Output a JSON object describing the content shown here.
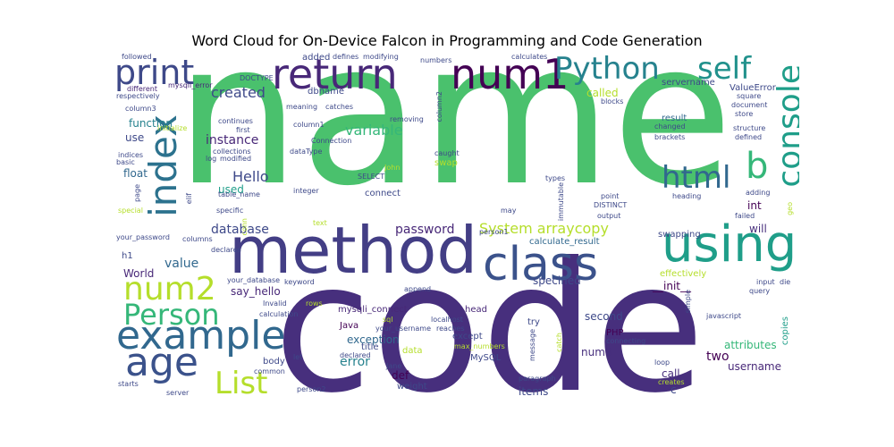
{
  "title": "Word Cloud for On-Device Falcon in Programming and Code Generation",
  "palette": [
    "#440154",
    "#482878",
    "#3e4989",
    "#31688e",
    "#26828e",
    "#1f9e89",
    "#35b779",
    "#6ece58",
    "#b5de2b",
    "#fde725"
  ],
  "words": {
    "name": "name",
    "code": "code",
    "method": "method",
    "class": "class",
    "using": "using",
    "return": "return",
    "num1": "num1",
    "print": "print",
    "python": "Python",
    "self": "self",
    "console": "console",
    "index": "index",
    "example": "example",
    "age": "age",
    "num2": "num2",
    "person": "Person",
    "list": "List",
    "html": "html",
    "b": "b",
    "created": "created",
    "system_arraycopy": "System arraycopy",
    "database": "database",
    "password": "password",
    "hello": "Hello",
    "variable": "variable",
    "instance": "instance",
    "function": "function",
    "used": "used",
    "float": "float",
    "value": "value",
    "world": "World",
    "h1": "h1",
    "say_hello": "say_hello",
    "mysqli_connect": "mysqli_connect",
    "java": "Java",
    "exception": "exception",
    "error": "error",
    "title_word": "title",
    "def": "def",
    "weight": "weight",
    "mysql": "MySQL",
    "num3": "num3",
    "second": "second",
    "php": "PHP",
    "two": "two",
    "username": "username",
    "items": "items",
    "call": "call",
    "attributes": "attributes",
    "init": "__init__",
    "swapping": "swapping",
    "effectively": "effectively",
    "calculate_result": "calculate_result",
    "called": "called",
    "result": "result",
    "valueerror": "ValueError",
    "servername": "servername",
    "added": "added",
    "dbname": "dbname",
    "int": "int",
    "will": "will",
    "head": "head",
    "data": "data",
    "try": "try",
    "specified": "specified",
    "body": "body",
    "swap": "swap",
    "connect": "connect",
    "use": "use",
    "followed": "followed",
    "defines": "defines",
    "modifying": "modifying",
    "numbers": "numbers",
    "calculates": "calculates",
    "mysqli_error": "mysqli_error",
    "doctype": "DOCTYPE",
    "different": "different",
    "respectively": "respectively",
    "column3": "column3",
    "initialize": "initialize",
    "indices": "indices",
    "basic": "basic",
    "log": "log",
    "modified": "modified",
    "collections": "collections",
    "continues": "continues",
    "first": "first",
    "meaning": "meaning",
    "catches": "catches",
    "column1": "column1",
    "connection": "Connection",
    "datatype": "dataType",
    "removing": "removing",
    "john": "John",
    "select": "SELECT",
    "integer": "integer",
    "table_name": "table_name",
    "elif": "elif",
    "page": "page",
    "special": "special",
    "specific": "specific",
    "your_password": "your_password",
    "columns": "columns",
    "declares": "declares",
    "text": "text",
    "may": "may",
    "person1": "person1",
    "your_database": "your_database",
    "keyword": "keyword",
    "invalid": "Invalid",
    "rows": "rows",
    "calculation": "calculation",
    "append": "append",
    "sql": "sql",
    "your_username": "your_username",
    "localhost": "localhost",
    "reaches": "reaches",
    "except": "except",
    "max_numbers": "max_numbers",
    "message": "message",
    "let": "let",
    "declared": "declared",
    "jane": "Jane",
    "common": "common",
    "server": "server",
    "person2": "person2",
    "starts": "starts",
    "paragraph": "paragraph",
    "catch": "catch",
    "connecting": "connecting",
    "copies": "copies",
    "loop": "loop",
    "creates": "creates",
    "javascript": "javascript",
    "simple": "simple",
    "input": "input",
    "die": "die",
    "failed": "failed",
    "adding": "adding",
    "heading": "heading",
    "point": "point",
    "distinct": "DISTINCT",
    "output": "output",
    "immutable": "immutable",
    "types": "types",
    "caught": "caught",
    "column2": "column2",
    "blocks": "blocks",
    "changed": "changed",
    "brackets": "brackets",
    "square": "square",
    "document": "document",
    "store": "store",
    "structure": "structure",
    "defined": "defined",
    "query": "query",
    "c": "c",
    "geo": "geo",
    "conn": "conn"
  }
}
